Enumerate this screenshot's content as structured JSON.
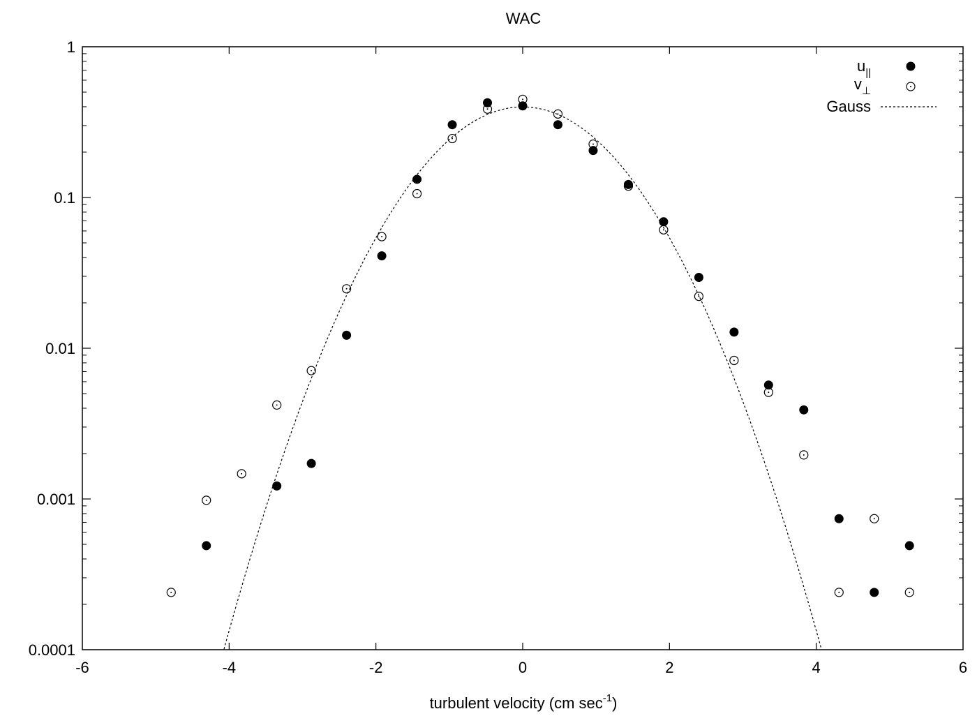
{
  "chart_data": {
    "type": "scatter",
    "title": "WAC",
    "xlabel": {
      "main": "turbulent velocity (cm sec",
      "sup": "-1",
      "tail": ")"
    },
    "ylabel": "",
    "xlim": [
      -6,
      6
    ],
    "ylim": [
      0.0001,
      1
    ],
    "yscale": "log",
    "grid": false,
    "legend_position": "top-right",
    "x_ticks": [
      "-6",
      "-4",
      "-2",
      "0",
      "2",
      "4",
      "6"
    ],
    "y_ticks": [
      "0.0001",
      "0.001",
      "0.01",
      "0.1",
      "1"
    ],
    "series": [
      {
        "name": "u",
        "name_subscript": "||",
        "marker": "filled-circle",
        "points": [
          [
            -4.31,
            0.00049
          ],
          [
            -3.35,
            0.00122
          ],
          [
            -2.88,
            0.00172
          ],
          [
            -2.4,
            0.0122
          ],
          [
            -1.92,
            0.041
          ],
          [
            -1.44,
            0.132
          ],
          [
            -0.96,
            0.304
          ],
          [
            -0.48,
            0.425
          ],
          [
            0.0,
            0.405
          ],
          [
            0.48,
            0.304
          ],
          [
            0.96,
            0.205
          ],
          [
            1.44,
            0.122
          ],
          [
            1.92,
            0.069
          ],
          [
            2.4,
            0.0295
          ],
          [
            2.88,
            0.0128
          ],
          [
            3.35,
            0.0057
          ],
          [
            3.83,
            0.0039
          ],
          [
            4.31,
            0.00074
          ],
          [
            4.79,
            0.00024
          ],
          [
            5.27,
            0.00049
          ]
        ]
      },
      {
        "name": "v",
        "name_subscript": "⊥",
        "marker": "open-circle-dot",
        "points": [
          [
            -4.79,
            0.00024
          ],
          [
            -4.31,
            0.00098
          ],
          [
            -3.83,
            0.00147
          ],
          [
            -3.35,
            0.0042
          ],
          [
            -2.88,
            0.0071
          ],
          [
            -2.4,
            0.0248
          ],
          [
            -1.92,
            0.055
          ],
          [
            -1.44,
            0.106
          ],
          [
            -0.96,
            0.246
          ],
          [
            -0.48,
            0.386
          ],
          [
            0.0,
            0.448
          ],
          [
            0.48,
            0.358
          ],
          [
            0.96,
            0.226
          ],
          [
            1.44,
            0.119
          ],
          [
            1.92,
            0.061
          ],
          [
            2.4,
            0.0221
          ],
          [
            2.88,
            0.0083
          ],
          [
            3.35,
            0.0051
          ],
          [
            3.83,
            0.00196
          ],
          [
            4.31,
            0.00024
          ],
          [
            4.79,
            0.00074
          ],
          [
            5.27,
            0.00024
          ]
        ]
      },
      {
        "name": "Gauss",
        "line_style": "dashed",
        "function": "exp(-x^2/2)/sqrt(2*pi)"
      }
    ]
  }
}
